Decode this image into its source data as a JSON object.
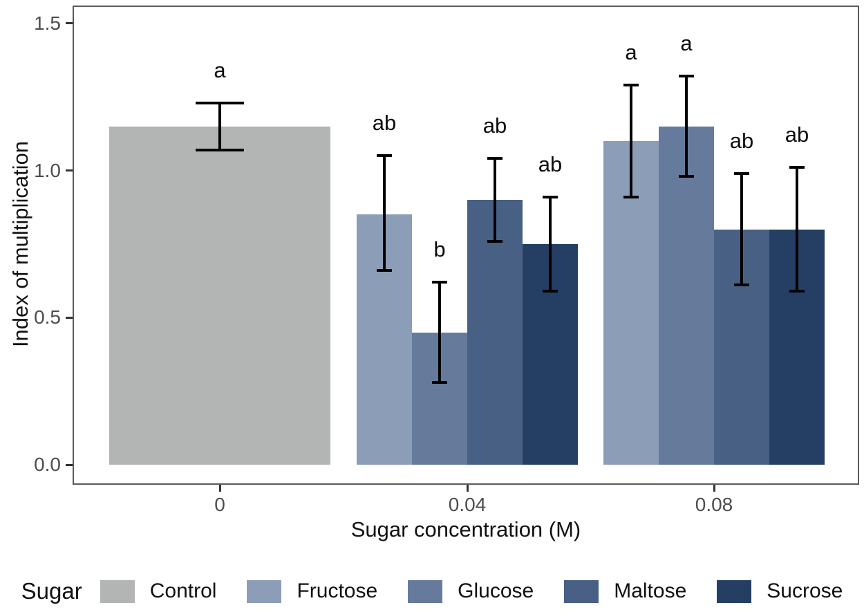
{
  "chart_data": {
    "type": "bar",
    "title": "",
    "xlabel": "Sugar concentration (M)",
    "ylabel": "Index of multiplication",
    "legend_title": "Sugar",
    "legend_position": "bottom",
    "grid": false,
    "categories": [
      "0",
      "0.04",
      "0.08"
    ],
    "yticks": [
      "0.0",
      "0.5",
      "1.0",
      "1.5"
    ],
    "ylim": [
      0.0,
      1.5
    ],
    "axis_color": "#595959",
    "tick_text_color": "#4d4d4d",
    "error_bar_color": "#000000",
    "series": [
      {
        "name": "Control",
        "color": "#b3b5b4",
        "values": [
          1.15,
          null,
          null
        ],
        "ci_low": [
          1.07,
          null,
          null
        ],
        "ci_high": [
          1.23,
          null,
          null
        ],
        "letters": [
          "a",
          null,
          null
        ]
      },
      {
        "name": "Fructose",
        "color": "#8c9db7",
        "values": [
          null,
          0.85,
          1.1
        ],
        "ci_low": [
          null,
          0.66,
          0.91
        ],
        "ci_high": [
          null,
          1.05,
          1.29
        ],
        "letters": [
          null,
          "ab",
          "a"
        ]
      },
      {
        "name": "Glucose",
        "color": "#667b9c",
        "values": [
          null,
          0.45,
          1.15
        ],
        "ci_low": [
          null,
          0.28,
          0.98
        ],
        "ci_high": [
          null,
          0.62,
          1.32
        ],
        "letters": [
          null,
          "b",
          "a"
        ]
      },
      {
        "name": "Maltose",
        "color": "#486084",
        "values": [
          null,
          0.9,
          0.8
        ],
        "ci_low": [
          null,
          0.76,
          0.61
        ],
        "ci_high": [
          null,
          1.04,
          0.99
        ],
        "letters": [
          null,
          "ab",
          "ab"
        ]
      },
      {
        "name": "Sucrose",
        "color": "#243f63",
        "values": [
          null,
          0.75,
          0.8
        ],
        "ci_low": [
          null,
          0.59,
          0.59
        ],
        "ci_high": [
          null,
          0.91,
          1.01
        ],
        "letters": [
          null,
          "ab",
          "ab"
        ]
      }
    ]
  }
}
